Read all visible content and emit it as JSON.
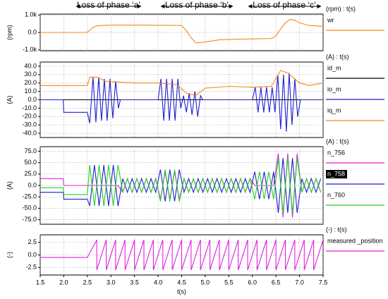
{
  "annotations": [
    "Loss of phase ‘a’",
    "Loss of phase ‘b’",
    "Loss of phase ‘c’"
  ],
  "chart_data": [
    {
      "type": "line",
      "header": "(rpm) : t(s)",
      "ylabel": "(rpm)",
      "xlim": [
        1.5,
        7.5
      ],
      "ylim": [
        -1050,
        1050
      ],
      "yticks": [
        {
          "value": 1000,
          "label": "1.0k"
        },
        {
          "value": 0,
          "label": "0.0"
        },
        {
          "value": -1000,
          "label": "-1.0k"
        }
      ],
      "grid": true,
      "series": [
        {
          "name": "wr",
          "color": "#f08a1c",
          "x": [
            1.5,
            2.5,
            2.6,
            2.7,
            3.0,
            3.5,
            4.0,
            4.5,
            4.6,
            4.7,
            4.8,
            5.0,
            5.3,
            5.8,
            6.4,
            6.5,
            6.6,
            6.7,
            6.8,
            6.9,
            7.0,
            7.2,
            7.5
          ],
          "values": [
            0,
            0,
            250,
            380,
            420,
            420,
            410,
            400,
            100,
            -300,
            -600,
            -550,
            -420,
            -380,
            -350,
            -200,
            200,
            550,
            750,
            700,
            550,
            400,
            350
          ]
        }
      ]
    },
    {
      "type": "line",
      "header": "(A) : t(s)",
      "ylabel": "(A)",
      "xlim": [
        1.5,
        7.5
      ],
      "ylim": [
        -45,
        45
      ],
      "yticks": [
        {
          "value": 40,
          "label": "40.0"
        },
        {
          "value": 30,
          "label": "30.0"
        },
        {
          "value": 20,
          "label": "20.0"
        },
        {
          "value": 10,
          "label": "10.0"
        },
        {
          "value": 0,
          "label": "0.0"
        },
        {
          "value": -10,
          "label": "-10.0"
        },
        {
          "value": -20,
          "label": "-20.0"
        },
        {
          "value": -30,
          "label": "-30.0"
        },
        {
          "value": -40,
          "label": "-40.0"
        }
      ],
      "grid": true,
      "series": [
        {
          "name": "id_m",
          "color": "#000000",
          "x": [
            1.5,
            7.5
          ],
          "values": [
            0,
            0
          ]
        },
        {
          "name": "io_m",
          "color": "#1f1fd0",
          "x": [
            1.5,
            1.99,
            2.0,
            2.5,
            2.55,
            2.62,
            2.68,
            2.74,
            2.8,
            2.86,
            2.92,
            2.98,
            3.04,
            3.1,
            3.16,
            3.2,
            4.0,
            4.06,
            4.12,
            4.18,
            4.24,
            4.3,
            4.36,
            4.42,
            4.48,
            4.54,
            4.6,
            4.66,
            4.72,
            4.78,
            4.84,
            4.9,
            4.95,
            6.0,
            6.06,
            6.12,
            6.18,
            6.24,
            6.3,
            6.36,
            6.42,
            6.48,
            6.54,
            6.6,
            6.66,
            6.72,
            6.78,
            6.84,
            6.9,
            6.96,
            7.02,
            7.5
          ],
          "values": [
            0,
            0,
            -15,
            -15,
            -28,
            27,
            -27,
            27,
            -25,
            25,
            -25,
            25,
            -22,
            22,
            -10,
            0,
            0,
            25,
            -25,
            25,
            -25,
            25,
            -25,
            25,
            -10,
            5,
            -15,
            8,
            -18,
            10,
            -20,
            5,
            0,
            0,
            15,
            -15,
            15,
            -15,
            15,
            -15,
            15,
            -15,
            30,
            -35,
            30,
            -38,
            32,
            -30,
            25,
            -20,
            0,
            0
          ]
        },
        {
          "name": "iq_m",
          "color": "#f08a1c",
          "x": [
            1.5,
            2.5,
            2.55,
            2.7,
            2.9,
            3.5,
            4.0,
            4.4,
            4.6,
            4.8,
            5.0,
            5.5,
            6.0,
            6.4,
            6.6,
            6.75,
            7.0,
            7.2,
            7.5
          ],
          "values": [
            17,
            17,
            27,
            27,
            22,
            20,
            20,
            18,
            8,
            5,
            14,
            16,
            15,
            16,
            35,
            32,
            20,
            17,
            20
          ]
        }
      ]
    },
    {
      "type": "line",
      "header": "(A) : t(s)",
      "ylabel": "(A)",
      "xlim": [
        1.5,
        7.5
      ],
      "ylim": [
        -85,
        85
      ],
      "yticks": [
        {
          "value": 75,
          "label": "75.0"
        },
        {
          "value": 50,
          "label": "50.0"
        },
        {
          "value": 25,
          "label": "25.0"
        },
        {
          "value": 0,
          "label": "0.0"
        },
        {
          "value": -25,
          "label": "-25.0"
        },
        {
          "value": -50,
          "label": "-50.0"
        },
        {
          "value": -75,
          "label": "-75.0"
        }
      ],
      "grid": true,
      "x": [
        1.5,
        1.99,
        2.0,
        2.5,
        2.55,
        2.65,
        2.75,
        2.85,
        2.95,
        3.05,
        3.15,
        3.25,
        3.35,
        3.45,
        3.55,
        3.65,
        3.75,
        3.85,
        3.95,
        4.05,
        4.15,
        4.25,
        4.35,
        4.45,
        4.55,
        4.65,
        4.75,
        4.85,
        4.95,
        5.05,
        5.15,
        5.25,
        5.35,
        5.45,
        5.55,
        5.65,
        5.75,
        5.85,
        5.95,
        6.05,
        6.15,
        6.25,
        6.35,
        6.45,
        6.55,
        6.65,
        6.75,
        6.85,
        6.95,
        7.05,
        7.15,
        7.25,
        7.35,
        7.45
      ],
      "series": [
        {
          "name": "n_756",
          "color": "#e020e0",
          "values": [
            15,
            15,
            0,
            0,
            0,
            0,
            0,
            0,
            0,
            0,
            0,
            -15,
            15,
            -15,
            15,
            -15,
            15,
            -15,
            15,
            -30,
            30,
            -30,
            30,
            -30,
            15,
            -15,
            15,
            -15,
            15,
            -15,
            15,
            -15,
            15,
            -15,
            15,
            -15,
            15,
            -15,
            15,
            0,
            0,
            0,
            0,
            0,
            70,
            -70,
            70,
            -70,
            70,
            -15,
            15,
            -15,
            15,
            -15
          ]
        },
        {
          "name": "n_758",
          "color": "#1f1fd0",
          "values": [
            -15,
            -15,
            -30,
            -30,
            -45,
            45,
            -45,
            45,
            -45,
            45,
            -45,
            15,
            -15,
            15,
            -15,
            15,
            -15,
            15,
            -15,
            35,
            -35,
            35,
            -35,
            35,
            -15,
            15,
            -15,
            15,
            -15,
            15,
            -15,
            15,
            -15,
            15,
            -15,
            15,
            -15,
            15,
            -15,
            30,
            -30,
            30,
            -30,
            30,
            -60,
            60,
            -60,
            60,
            -60,
            15,
            -15,
            15,
            -15,
            15
          ]
        },
        {
          "name": "n_760",
          "color": "#22d022",
          "values": [
            -5,
            -5,
            -20,
            -20,
            45,
            -45,
            45,
            -45,
            45,
            -45,
            45,
            -15,
            15,
            -15,
            15,
            -15,
            15,
            -15,
            15,
            -35,
            35,
            -35,
            35,
            -35,
            15,
            -15,
            15,
            -15,
            15,
            -15,
            15,
            -15,
            15,
            -15,
            15,
            -15,
            15,
            -15,
            15,
            -30,
            30,
            -30,
            30,
            -30,
            60,
            -60,
            60,
            -60,
            60,
            -15,
            15,
            -15,
            15,
            -15
          ]
        }
      ]
    },
    {
      "type": "line",
      "header": "(-) : t(s)",
      "ylabel": "(-)",
      "xlabel": "t(s)",
      "xlim": [
        1.5,
        7.5
      ],
      "ylim": [
        -4,
        4
      ],
      "yticks": [
        2.5,
        {
          "value": 0,
          "label": "0.0"
        },
        -2.5
      ],
      "grid": true,
      "xticks": [
        1.5,
        {
          "value": 2,
          "label": "2.0"
        },
        2.5,
        {
          "value": 3,
          "label": "3.0"
        },
        3.5,
        {
          "value": 4,
          "label": "4.0"
        },
        4.5,
        {
          "value": 5,
          "label": "5.0"
        },
        5.5,
        {
          "value": 6,
          "label": "6.0"
        },
        6.5,
        {
          "value": 7,
          "label": "7.0"
        },
        7.5
      ],
      "x": [
        1.5,
        2.5,
        2.7,
        2.7,
        2.9,
        2.9,
        3.1,
        3.1,
        3.3,
        3.3,
        3.5,
        3.5,
        3.7,
        3.7,
        3.9,
        3.9,
        4.1,
        4.1,
        4.3,
        4.3,
        4.5,
        4.5,
        4.7,
        4.7,
        4.9,
        4.9,
        5.1,
        5.1,
        5.3,
        5.3,
        5.5,
        5.5,
        5.7,
        5.7,
        5.9,
        5.9,
        6.1,
        6.1,
        6.3,
        6.3,
        6.5,
        6.5,
        6.7,
        6.7,
        6.9,
        6.9,
        7.1,
        7.1,
        7.3,
        7.3,
        7.5
      ],
      "series": [
        {
          "name": "measured _position",
          "color": "#e020e0",
          "values": [
            -0.5,
            -0.5,
            3,
            -3,
            3,
            -3,
            3,
            -3,
            3,
            -3,
            3,
            -3,
            3,
            -3,
            3,
            -3,
            3,
            -3,
            3,
            -3,
            3,
            -3,
            3,
            -3,
            3,
            -3,
            3,
            -3,
            3,
            -3,
            3,
            -3,
            3,
            -3,
            3,
            -3,
            3,
            -3,
            3,
            -3,
            3,
            -3,
            3,
            -3,
            3,
            -3,
            3,
            -3,
            3,
            -3,
            3
          ]
        }
      ]
    }
  ]
}
